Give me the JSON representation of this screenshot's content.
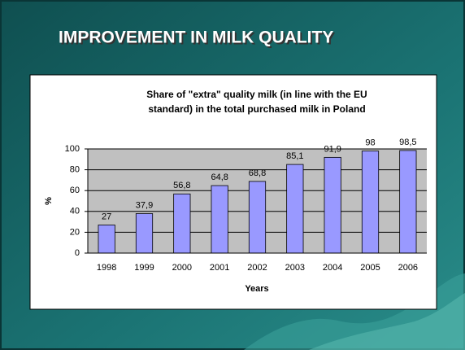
{
  "header": {
    "title": "IMPROVEMENT IN MILK QUALITY"
  },
  "chart_data": {
    "type": "bar",
    "title": [
      "Share of \"extra\" quality milk (in line with the EU",
      "standard) in the total purchased milk in Poland"
    ],
    "x_label": "Years",
    "y_label": "%",
    "categories": [
      "1998",
      "1999",
      "2000",
      "2001",
      "2002",
      "2003",
      "2004",
      "2005",
      "2006"
    ],
    "values": [
      27,
      37.9,
      56.8,
      64.8,
      68.8,
      85.1,
      91.9,
      98,
      98.5
    ],
    "value_labels": [
      "27",
      "37,9",
      "56,8",
      "64,8",
      "68,8",
      "85,1",
      "91,9",
      "98",
      "98,5"
    ],
    "color": "#9999ff",
    "ylim": [
      0,
      100
    ],
    "yticks": [
      0,
      20,
      40,
      60,
      80,
      100
    ],
    "grid": true
  }
}
